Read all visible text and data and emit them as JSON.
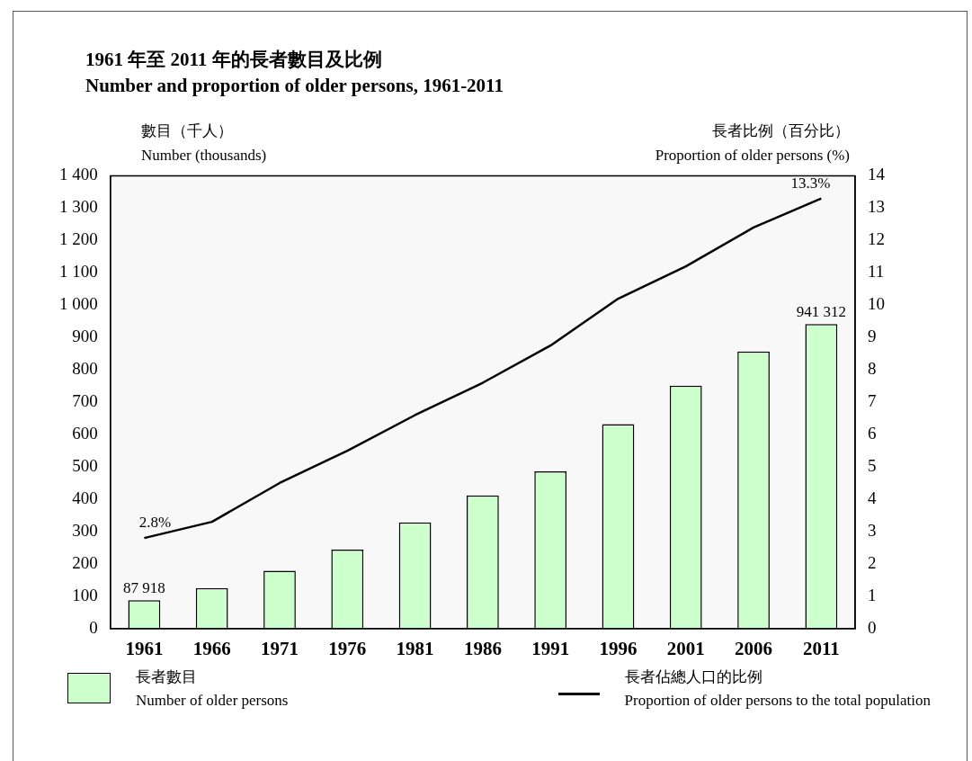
{
  "chart_data": {
    "type": "bar",
    "title": "1961 年至 2011 年的長者數目及比例",
    "subtitle": "Number and proportion of older persons, 1961-2011",
    "ylabel": "數目（千人）\nNumber (thousands)",
    "y2label": "長者比例（百分比）\nProportion of older persons (%)",
    "categories": [
      "1961",
      "1966",
      "1971",
      "1976",
      "1981",
      "1986",
      "1991",
      "1996",
      "2001",
      "2006",
      "2011"
    ],
    "series": [
      {
        "name": "長者數目\nNumber of older persons",
        "color": "#ccffcc",
        "values": [
          87.918,
          125,
          179,
          244,
          328,
          412,
          486,
          632,
          751,
          857,
          941.312
        ]
      },
      {
        "name": "長者佔總人口的比例\nProportion of older persons to the total population",
        "type": "line",
        "axis": "y2",
        "color": "#000000",
        "values": [
          2.8,
          3.3,
          4.5,
          5.5,
          6.6,
          7.6,
          8.75,
          10.2,
          11.2,
          12.4,
          13.3
        ],
        "value_labels": [
          "2.8%",
          null,
          null,
          null,
          null,
          null,
          null,
          null,
          null,
          null,
          "13.3%"
        ]
      }
    ],
    "ylim": [
      0,
      1400
    ],
    "yticks": [
      0,
      100,
      200,
      300,
      400,
      500,
      600,
      700,
      800,
      900,
      {
        "value": 1000,
        "label": "1 000"
      },
      {
        "value": 1100,
        "label": "1 100"
      },
      {
        "value": 1200,
        "label": "1 200"
      },
      {
        "value": 1300,
        "label": "1 300"
      },
      {
        "value": 1400,
        "label": "1 400"
      }
    ],
    "y2lim": [
      0,
      14
    ],
    "y2ticks": [
      0,
      1,
      2,
      3,
      4,
      5,
      6,
      7,
      8,
      9,
      10,
      11,
      12,
      13,
      14
    ],
    "annotations": [
      {
        "text": "87 918",
        "x": "1961",
        "y": 87.918
      },
      {
        "text": "941 312",
        "x": "2011",
        "y": 941.312
      }
    ],
    "legend": "bottom",
    "marker": "none"
  }
}
